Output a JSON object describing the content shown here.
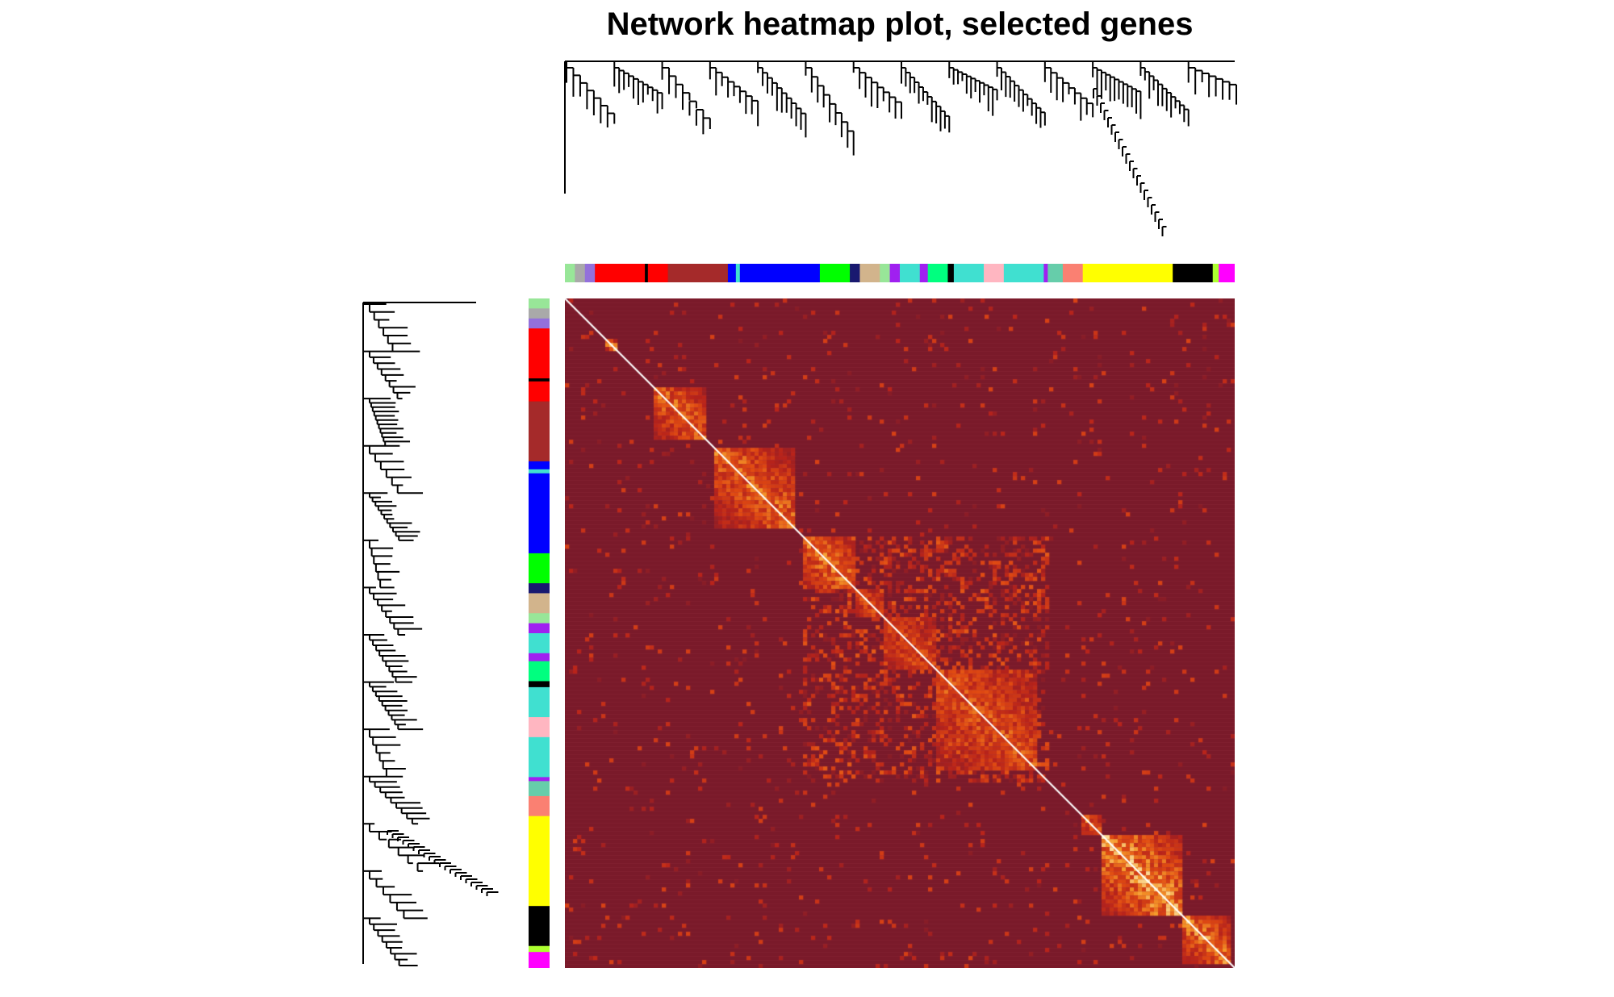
{
  "title": "Network heatmap plot, selected genes",
  "chart_data": {
    "type": "heatmap",
    "title": "Network heatmap plot, selected genes",
    "xlabel": "",
    "ylabel": "",
    "colors": {
      "low": "#7a1a2a",
      "mid1": "#b8231a",
      "mid2": "#e04a12",
      "mid3": "#f59a2a",
      "high": "#fff5c0",
      "diagonal": "#ffffff"
    },
    "modules": [
      {
        "color": "#98e698",
        "size": 1
      },
      {
        "color": "#a9a9a9",
        "size": 1
      },
      {
        "color": "#9370db",
        "size": 1
      },
      {
        "color": "#ff0000",
        "size": 5
      },
      {
        "color": "#000000",
        "size": 0.3
      },
      {
        "color": "#ff0000",
        "size": 2
      },
      {
        "color": "#a52a2a",
        "size": 6
      },
      {
        "color": "#0000ff",
        "size": 0.8
      },
      {
        "color": "#40e0d0",
        "size": 0.4
      },
      {
        "color": "#0000ff",
        "size": 8
      },
      {
        "color": "#00ff00",
        "size": 3
      },
      {
        "color": "#191970",
        "size": 1
      },
      {
        "color": "#d2b48c",
        "size": 2
      },
      {
        "color": "#98e698",
        "size": 1
      },
      {
        "color": "#a020f0",
        "size": 1
      },
      {
        "color": "#40e0d0",
        "size": 2
      },
      {
        "color": "#a020f0",
        "size": 0.8
      },
      {
        "color": "#00ff7f",
        "size": 2
      },
      {
        "color": "#000000",
        "size": 0.6
      },
      {
        "color": "#40e0d0",
        "size": 3
      },
      {
        "color": "#ffb6c1",
        "size": 2
      },
      {
        "color": "#40e0d0",
        "size": 4
      },
      {
        "color": "#a020f0",
        "size": 0.4
      },
      {
        "color": "#66cdaa",
        "size": 1.5
      },
      {
        "color": "#fa8072",
        "size": 2
      },
      {
        "color": "#ffff00",
        "size": 9
      },
      {
        "color": "#000000",
        "size": 4
      },
      {
        "color": "#adff2f",
        "size": 0.6
      },
      {
        "color": "#ff00ff",
        "size": 1.6
      }
    ],
    "blocks": [
      {
        "from": 0.055,
        "to": 0.075,
        "strength": 0.9
      },
      {
        "from": 0.13,
        "to": 0.21,
        "strength": 0.8
      },
      {
        "from": 0.22,
        "to": 0.34,
        "strength": 0.8
      },
      {
        "from": 0.35,
        "to": 0.43,
        "strength": 0.85
      },
      {
        "from": 0.43,
        "to": 0.47,
        "strength": 0.7
      },
      {
        "from": 0.47,
        "to": 0.55,
        "strength": 0.6
      },
      {
        "from": 0.55,
        "to": 0.7,
        "strength": 0.7
      },
      {
        "from": 0.77,
        "to": 0.8,
        "strength": 0.8
      },
      {
        "from": 0.8,
        "to": 0.92,
        "strength": 1.0
      },
      {
        "from": 0.92,
        "to": 0.99,
        "strength": 0.9
      }
    ]
  }
}
